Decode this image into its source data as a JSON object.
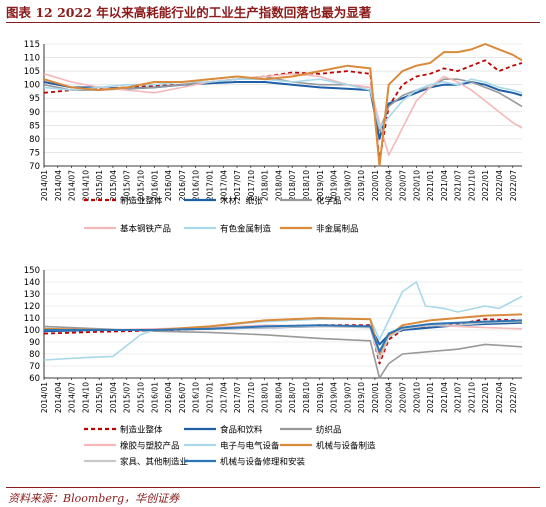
{
  "figure_title": "图表 12   2022 年以来高耗能行业的工业生产指数回落也最为显著",
  "source": "资料来源：Bloomberg，华创证券",
  "colors": {
    "frame": "#8b1a1a",
    "grid": "#d9d9d9"
  },
  "chart_data": [
    {
      "type": "line",
      "title": "",
      "xlabel": "",
      "ylabel": "",
      "ylim": [
        70,
        115
      ],
      "yticks": [
        70,
        75,
        80,
        85,
        90,
        95,
        100,
        105,
        110,
        115
      ],
      "grid": true,
      "legend_position": "bottom",
      "x_ticks": [
        "2014/01",
        "2014/04",
        "2014/07",
        "2014/10",
        "2015/01",
        "2015/04",
        "2015/07",
        "2015/10",
        "2016/01",
        "2016/04",
        "2016/07",
        "2016/10",
        "2017/01",
        "2017/04",
        "2017/07",
        "2017/10",
        "2018/01",
        "2018/04",
        "2018/07",
        "2018/10",
        "2019/01",
        "2019/04",
        "2019/07",
        "2019/10",
        "2020/01",
        "2020/04",
        "2020/07",
        "2020/10",
        "2021/01",
        "2021/04",
        "2021/07",
        "2021/10",
        "2022/01",
        "2022/04",
        "2022/07"
      ],
      "series": [
        {
          "name": "制造业整体",
          "color": "#c00000",
          "dash": "4,3",
          "width": 1.8,
          "x": [
            "2014/01",
            "2014/07",
            "2015/01",
            "2015/07",
            "2016/01",
            "2016/07",
            "2017/01",
            "2017/07",
            "2018/01",
            "2018/07",
            "2019/01",
            "2019/07",
            "2019/12",
            "2020/02",
            "2020/04",
            "2020/07",
            "2020/10",
            "2021/01",
            "2021/04",
            "2021/07",
            "2021/10",
            "2022/01",
            "2022/04",
            "2022/07",
            "2022/09"
          ],
          "values": [
            97,
            98,
            98.5,
            99,
            99.5,
            100,
            101,
            102,
            103,
            104.5,
            104,
            105,
            104,
            72,
            92,
            100,
            103,
            104,
            106,
            105,
            107,
            109,
            105,
            107,
            108
          ]
        },
        {
          "name": "木材、纸张",
          "color": "#1f5fa8",
          "dash": "",
          "width": 2,
          "x": [
            "2014/01",
            "2014/07",
            "2015/01",
            "2015/07",
            "2016/01",
            "2016/07",
            "2017/01",
            "2017/07",
            "2018/01",
            "2018/07",
            "2019/01",
            "2019/07",
            "2019/12",
            "2020/02",
            "2020/04",
            "2020/07",
            "2020/10",
            "2021/01",
            "2021/04",
            "2021/07",
            "2021/10",
            "2022/01",
            "2022/04",
            "2022/07",
            "2022/09"
          ],
          "values": [
            101,
            99,
            99,
            98.5,
            99,
            100,
            100.5,
            101,
            101,
            100,
            99,
            98.5,
            98,
            80,
            93,
            95,
            97,
            99,
            100,
            100,
            101,
            100,
            98,
            97,
            96
          ]
        },
        {
          "name": "化学品",
          "color": "#999999",
          "dash": "",
          "width": 1.6,
          "x": [
            "2014/01",
            "2014/07",
            "2015/01",
            "2015/07",
            "2016/01",
            "2016/07",
            "2017/01",
            "2017/07",
            "2018/01",
            "2018/07",
            "2019/01",
            "2019/07",
            "2019/12",
            "2020/02",
            "2020/04",
            "2020/07",
            "2020/10",
            "2021/01",
            "2021/04",
            "2021/07",
            "2021/10",
            "2022/01",
            "2022/04",
            "2022/07",
            "2022/09"
          ],
          "values": [
            100,
            98,
            98,
            98.5,
            99,
            100,
            101,
            102,
            103,
            101,
            100,
            100,
            99,
            83,
            92,
            96,
            98,
            99,
            102,
            102,
            101,
            99,
            97,
            94,
            92
          ]
        },
        {
          "name": "基本钢铁产品",
          "color": "#f4b8b8",
          "dash": "",
          "width": 1.6,
          "x": [
            "2014/01",
            "2014/07",
            "2015/01",
            "2015/07",
            "2016/01",
            "2016/07",
            "2017/01",
            "2017/07",
            "2018/01",
            "2018/07",
            "2019/01",
            "2019/07",
            "2019/12",
            "2020/02",
            "2020/04",
            "2020/07",
            "2020/10",
            "2021/01",
            "2021/04",
            "2021/07",
            "2021/10",
            "2022/01",
            "2022/04",
            "2022/07",
            "2022/09"
          ],
          "values": [
            104,
            101,
            99,
            98,
            97,
            99,
            101,
            102,
            103,
            104,
            103,
            100,
            99,
            86,
            74,
            84,
            94,
            99,
            103,
            101,
            98,
            94,
            90,
            86,
            84
          ]
        },
        {
          "name": "有色金属制造",
          "color": "#a8d8ea",
          "dash": "",
          "width": 1.6,
          "x": [
            "2014/01",
            "2014/07",
            "2015/01",
            "2015/07",
            "2016/01",
            "2016/07",
            "2017/01",
            "2017/07",
            "2018/01",
            "2018/07",
            "2019/01",
            "2019/07",
            "2019/12",
            "2020/02",
            "2020/04",
            "2020/07",
            "2020/10",
            "2021/01",
            "2021/04",
            "2021/07",
            "2021/10",
            "2022/01",
            "2022/04",
            "2022/07",
            "2022/09"
          ],
          "values": [
            99,
            98,
            99,
            100,
            100,
            101,
            101,
            102,
            102,
            101,
            102,
            100,
            98,
            84,
            88,
            94,
            98,
            100,
            101,
            100,
            102,
            101,
            99,
            98,
            97
          ]
        },
        {
          "name": "非金属制品",
          "color": "#d98a3a",
          "dash": "",
          "width": 2,
          "x": [
            "2014/01",
            "2014/07",
            "2015/01",
            "2015/07",
            "2016/01",
            "2016/07",
            "2017/01",
            "2017/07",
            "2018/01",
            "2018/07",
            "2019/01",
            "2019/07",
            "2019/12",
            "2020/02",
            "2020/04",
            "2020/07",
            "2020/10",
            "2021/01",
            "2021/04",
            "2021/07",
            "2021/10",
            "2022/01",
            "2022/04",
            "2022/07",
            "2022/09"
          ],
          "values": [
            102,
            99,
            98,
            99,
            101,
            101,
            102,
            103,
            102,
            103,
            105,
            107,
            106,
            70,
            100,
            105,
            107,
            108,
            112,
            112,
            113,
            115,
            113,
            111,
            109
          ]
        }
      ]
    },
    {
      "type": "line",
      "title": "",
      "xlabel": "",
      "ylabel": "",
      "ylim": [
        60,
        150
      ],
      "yticks": [
        60,
        70,
        80,
        90,
        100,
        110,
        120,
        130,
        140,
        150
      ],
      "grid": true,
      "legend_position": "bottom",
      "x_ticks": [
        "2014/01",
        "2014/04",
        "2014/07",
        "2014/10",
        "2015/01",
        "2015/04",
        "2015/07",
        "2015/10",
        "2016/01",
        "2016/04",
        "2016/07",
        "2016/10",
        "2017/01",
        "2017/04",
        "2017/07",
        "2017/10",
        "2018/01",
        "2018/04",
        "2018/07",
        "2018/10",
        "2019/01",
        "2019/04",
        "2019/07",
        "2019/10",
        "2020/01",
        "2020/04",
        "2020/07",
        "2020/10",
        "2021/01",
        "2021/04",
        "2021/07",
        "2021/10",
        "2022/01",
        "2022/04",
        "2022/07"
      ],
      "series": [
        {
          "name": "制造业整体",
          "color": "#c00000",
          "dash": "4,3",
          "width": 1.8,
          "x": [
            "2014/01",
            "2015/01",
            "2016/01",
            "2017/01",
            "2018/01",
            "2019/01",
            "2019/12",
            "2020/02",
            "2020/04",
            "2020/07",
            "2021/01",
            "2021/07",
            "2022/01",
            "2022/09"
          ],
          "values": [
            97,
            98.5,
            99.5,
            101,
            103,
            104,
            104,
            72,
            92,
            100,
            104,
            105,
            109,
            108
          ]
        },
        {
          "name": "食品和饮料",
          "color": "#1f5fa8",
          "dash": "",
          "width": 2,
          "x": [
            "2014/01",
            "2015/01",
            "2016/01",
            "2017/01",
            "2018/01",
            "2019/01",
            "2019/12",
            "2020/02",
            "2020/04",
            "2020/07",
            "2021/01",
            "2021/07",
            "2022/01",
            "2022/09"
          ],
          "values": [
            99,
            100,
            100,
            101,
            102,
            103,
            103,
            88,
            96,
            100,
            102,
            104,
            105,
            106
          ]
        },
        {
          "name": "纺织品",
          "color": "#999999",
          "dash": "",
          "width": 1.6,
          "x": [
            "2014/01",
            "2015/01",
            "2016/01",
            "2017/01",
            "2018/01",
            "2019/01",
            "2019/12",
            "2020/02",
            "2020/04",
            "2020/07",
            "2021/01",
            "2021/07",
            "2022/01",
            "2022/09"
          ],
          "values": [
            103,
            101,
            99,
            98,
            96,
            93,
            91,
            60,
            72,
            80,
            82,
            84,
            88,
            86
          ]
        },
        {
          "name": "橡胶与塑胶产品",
          "color": "#f4b8b8",
          "dash": "",
          "width": 1.6,
          "x": [
            "2014/01",
            "2015/01",
            "2016/01",
            "2017/01",
            "2018/01",
            "2019/01",
            "2019/12",
            "2020/02",
            "2020/04",
            "2020/07",
            "2021/01",
            "2021/07",
            "2022/01",
            "2022/09"
          ],
          "values": [
            100,
            100,
            101,
            102,
            104,
            103,
            102,
            75,
            94,
            101,
            104,
            103,
            102,
            101
          ]
        },
        {
          "name": "电子与电气设备",
          "color": "#a8d8ea",
          "dash": "",
          "width": 1.6,
          "x": [
            "2014/01",
            "2014/10",
            "2015/04",
            "2015/10",
            "2016/01",
            "2017/01",
            "2018/01",
            "2019/01",
            "2019/12",
            "2020/02",
            "2020/04",
            "2020/07",
            "2020/10",
            "2020/12",
            "2021/04",
            "2021/07",
            "2022/01",
            "2022/04",
            "2022/09"
          ],
          "values": [
            75,
            77,
            78,
            96,
            100,
            103,
            107,
            109,
            109,
            92,
            108,
            132,
            140,
            120,
            118,
            115,
            120,
            118,
            128
          ]
        },
        {
          "name": "机械与设备制造",
          "color": "#d98a3a",
          "dash": "",
          "width": 2,
          "x": [
            "2014/01",
            "2015/01",
            "2016/01",
            "2017/01",
            "2018/01",
            "2019/01",
            "2019/12",
            "2020/02",
            "2020/04",
            "2020/07",
            "2021/01",
            "2021/07",
            "2022/01",
            "2022/09"
          ],
          "values": [
            101,
            100,
            100,
            103,
            108,
            110,
            109,
            80,
            95,
            104,
            108,
            110,
            112,
            113
          ]
        },
        {
          "name": "家具、其他制造业",
          "color": "#c8c8c8",
          "dash": "",
          "width": 1.6,
          "x": [
            "2014/01",
            "2015/01",
            "2016/01",
            "2017/01",
            "2018/01",
            "2019/01",
            "2019/12",
            "2020/02",
            "2020/04",
            "2020/07",
            "2021/01",
            "2021/07",
            "2022/01",
            "2022/09"
          ],
          "values": [
            100,
            100,
            100,
            101,
            102,
            103,
            102,
            76,
            94,
            101,
            104,
            104,
            106,
            107
          ]
        },
        {
          "name": "机械与设备修理和安装",
          "color": "#2e75b6",
          "dash": "",
          "width": 2,
          "x": [
            "2014/01",
            "2015/01",
            "2016/01",
            "2017/01",
            "2018/01",
            "2019/01",
            "2019/12",
            "2020/02",
            "2020/04",
            "2020/07",
            "2021/01",
            "2021/07",
            "2022/01",
            "2022/09"
          ],
          "values": [
            100,
            100,
            100,
            101,
            103,
            104,
            103,
            82,
            97,
            102,
            105,
            106,
            107,
            108
          ]
        }
      ]
    }
  ]
}
